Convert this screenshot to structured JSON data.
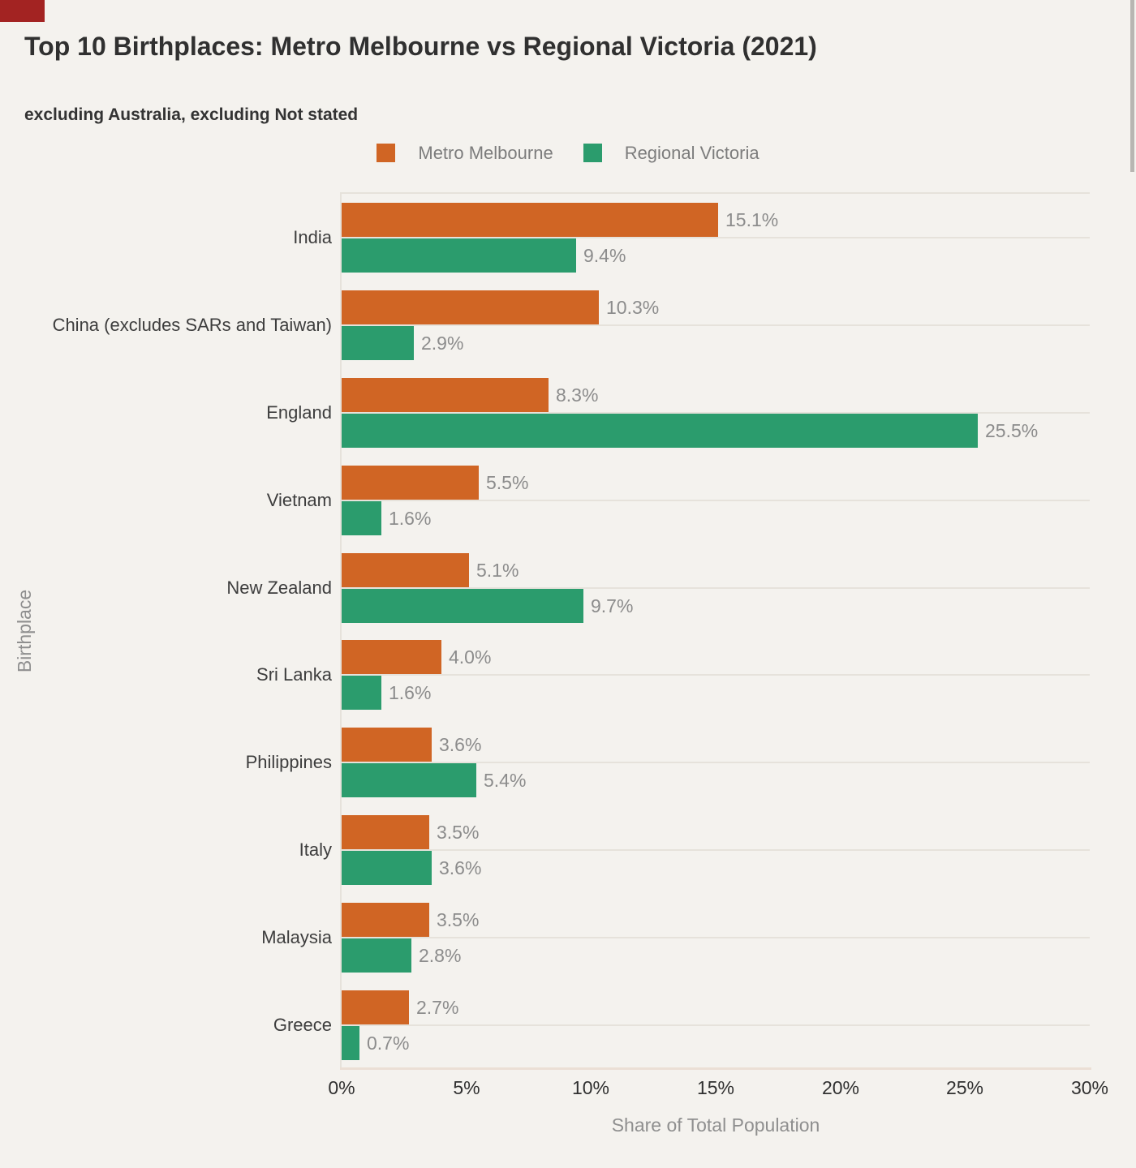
{
  "header": {
    "title": "Top 10 Birthplaces: Metro Melbourne vs Regional Victoria (2021)",
    "subtitle": "excluding Australia, excluding Not stated"
  },
  "legend": {
    "items": [
      {
        "label": "Metro Melbourne",
        "color": "#d06524"
      },
      {
        "label": "Regional Victoria",
        "color": "#2b9c6d"
      }
    ]
  },
  "chart_data": {
    "type": "bar",
    "orientation": "horizontal",
    "title": "Top 10 Birthplaces: Metro Melbourne vs Regional Victoria (2021)",
    "subtitle": "excluding Australia, excluding Not stated",
    "categories": [
      "India",
      "China (excludes SARs and Taiwan)",
      "England",
      "Vietnam",
      "New Zealand",
      "Sri Lanka",
      "Philippines",
      "Italy",
      "Malaysia",
      "Greece"
    ],
    "series": [
      {
        "name": "Metro Melbourne",
        "color": "#d06524",
        "values": [
          15.1,
          10.3,
          8.3,
          5.5,
          5.1,
          4.0,
          3.6,
          3.5,
          3.5,
          2.7
        ]
      },
      {
        "name": "Regional Victoria",
        "color": "#2b9c6d",
        "values": [
          9.4,
          2.9,
          25.5,
          1.6,
          9.7,
          1.6,
          5.4,
          3.6,
          2.8,
          0.7
        ]
      }
    ],
    "value_label_suffix": "%",
    "xlabel": "Share of Total Population",
    "ylabel": "Birthplace",
    "xlim": [
      0,
      30
    ],
    "xticks": [
      0,
      5,
      10,
      15,
      20,
      25,
      30
    ],
    "xtick_labels": [
      "0%",
      "5%",
      "10%",
      "15%",
      "20%",
      "25%",
      "30%"
    ],
    "grid": "horizontal-lines-at-category-centers",
    "legend_position": "top-center"
  },
  "colors": {
    "background": "#f4f2ee",
    "grid_line": "#e6e2db",
    "axis_bottom_line": "#ebdfd5",
    "title_text": "#303030",
    "category_text": "#3d3d3d",
    "tick_text": "#303030",
    "value_text": "#8c8c8c",
    "legend_text": "#7c7c7c",
    "axis_title_text": "#8f8f8f"
  },
  "artifacts": {
    "corner_marker_color": "#a32322",
    "scrollbar_thumb_color": "#b8b6b2"
  }
}
